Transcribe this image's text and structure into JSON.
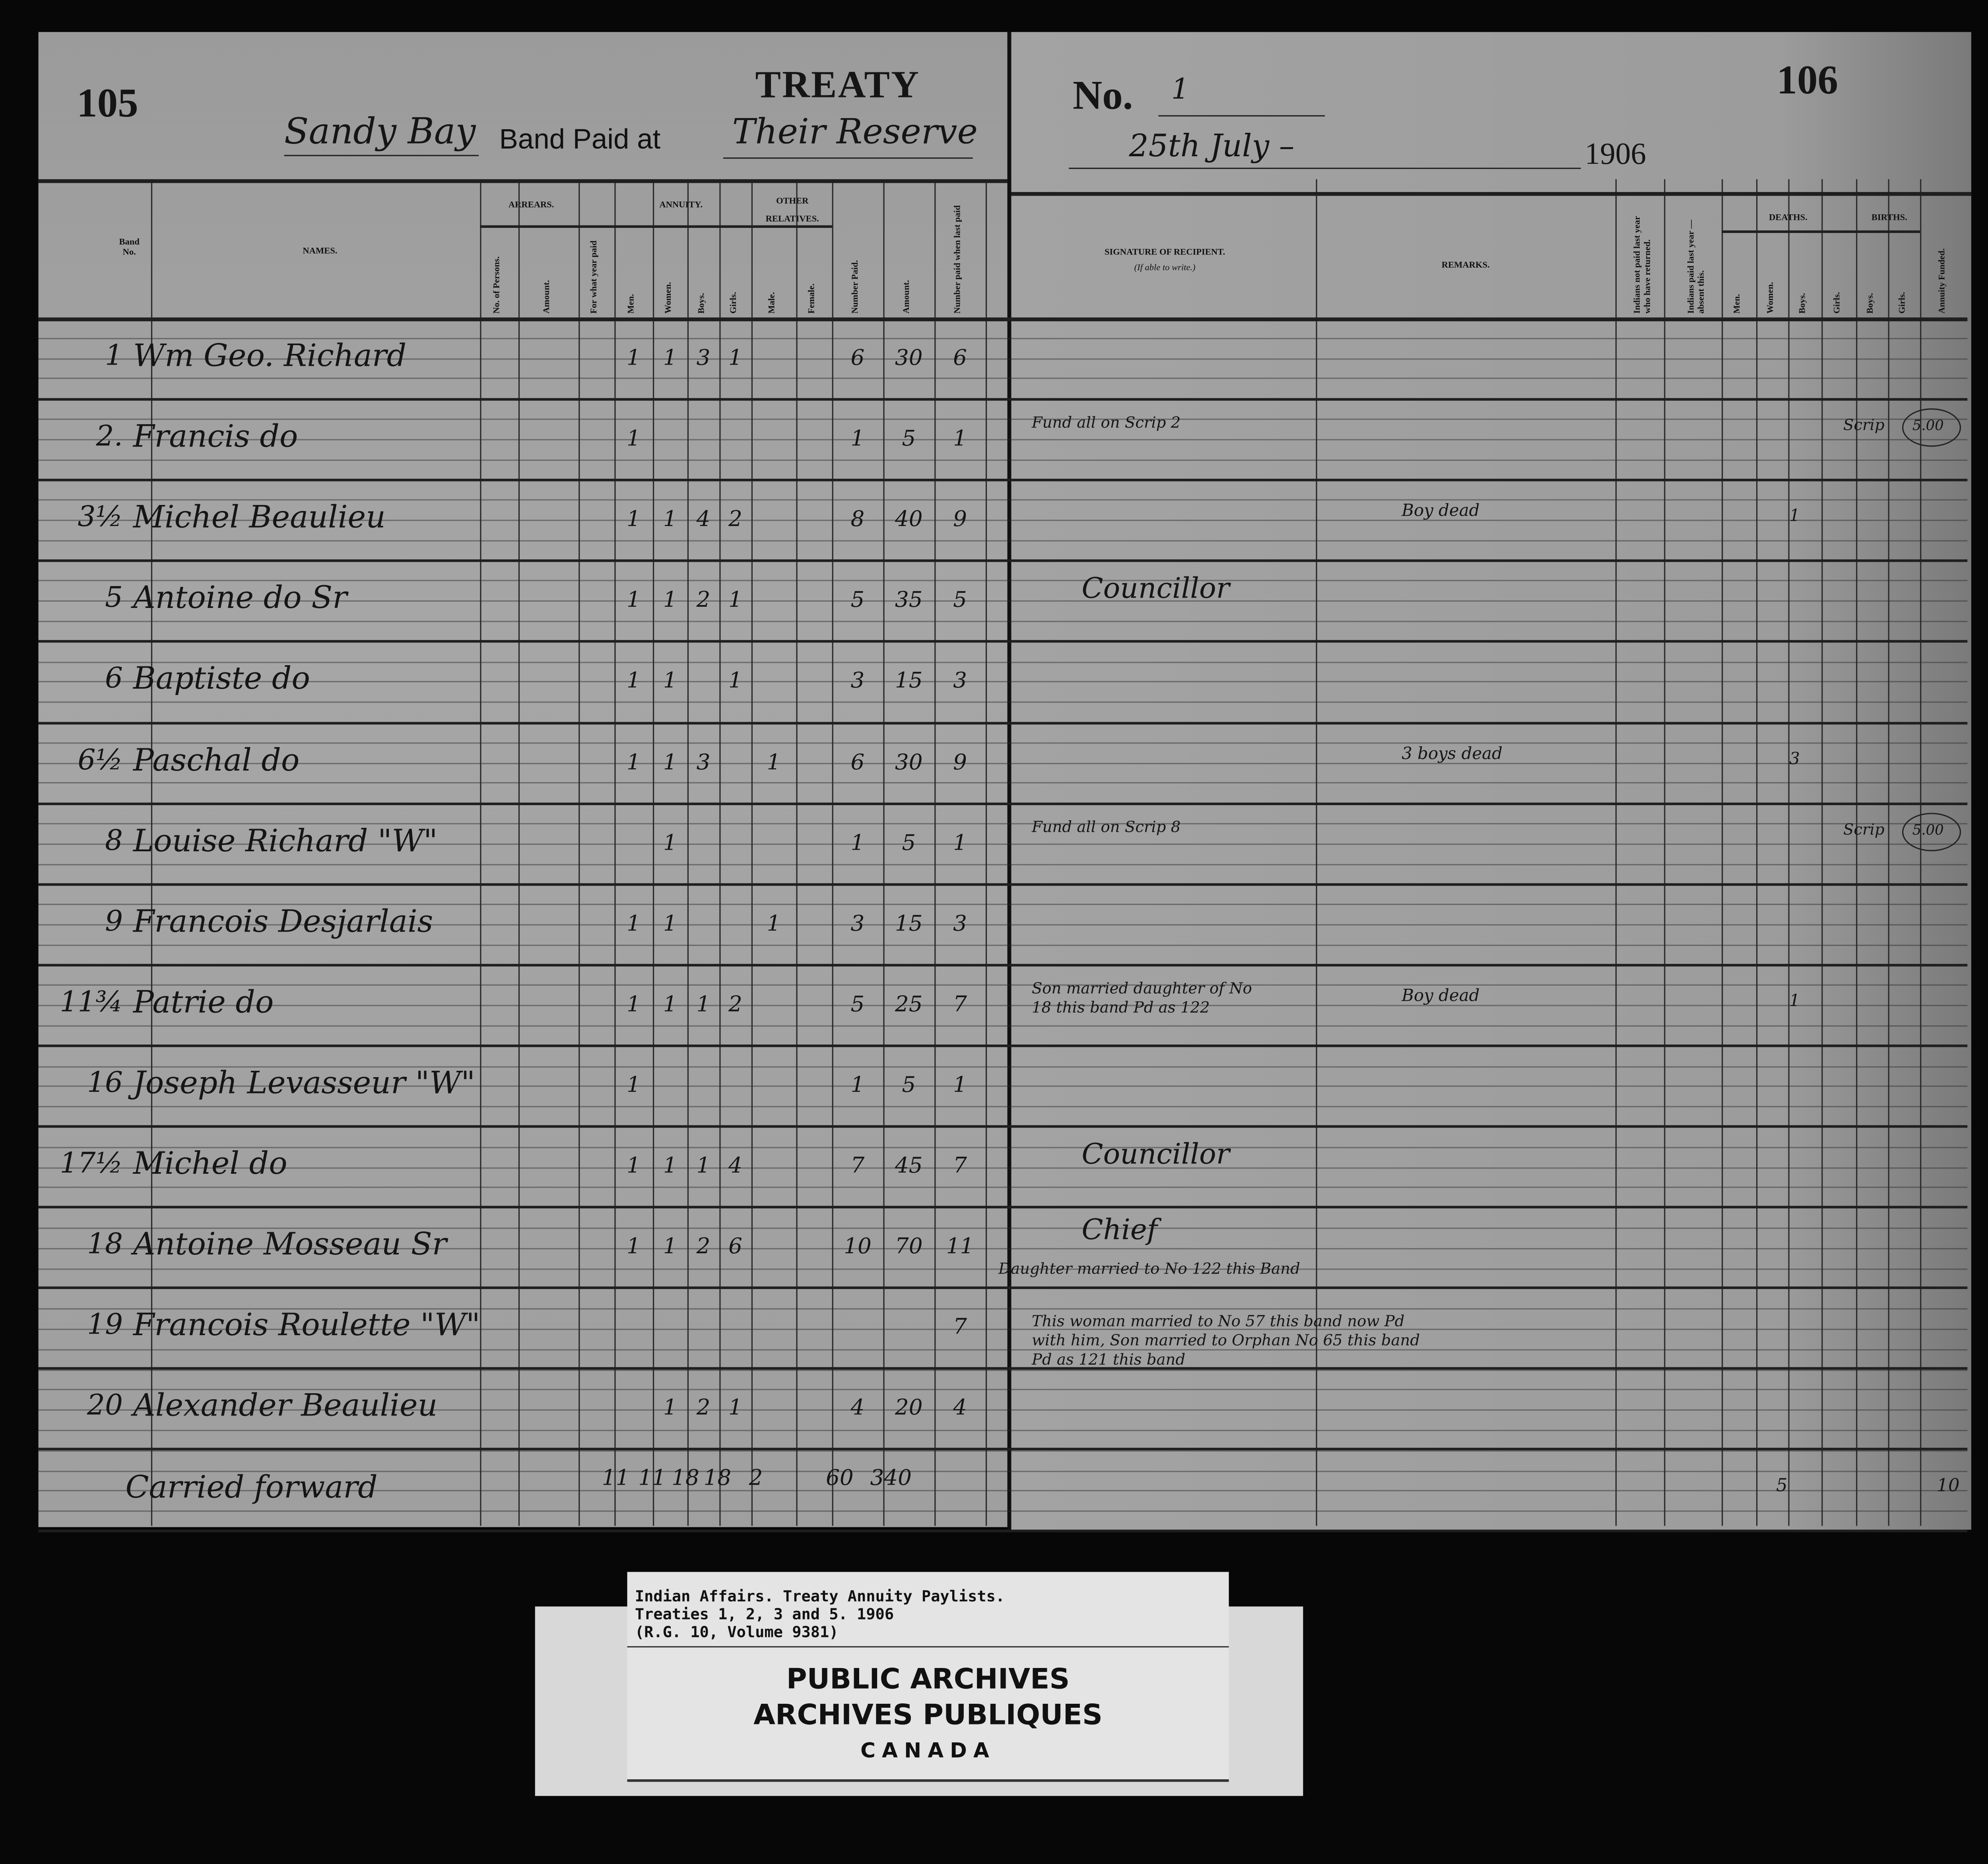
{
  "header": {
    "page_number_left": "105",
    "page_number_right": "106",
    "title": "TREATY",
    "no_label": "No.",
    "treaty_no": "1",
    "band_name": "Sandy Bay",
    "band_paid_at_label": "Band Paid at",
    "paid_at_place": "Their Reserve",
    "date": "25th July –",
    "year": "1906"
  },
  "columns": {
    "band_no": "Band No.",
    "names": "NAMES.",
    "arrears": "ARREARS.",
    "arrears_persons": "No. of Persons.",
    "arrears_amount": "Amount.",
    "arrears_year": "For what year paid",
    "annuity": "ANNUITY.",
    "men": "Men.",
    "women": "Women.",
    "boys": "Boys.",
    "girls": "Girls.",
    "other_relatives": "OTHER RELATIVES.",
    "male": "Male.",
    "female": "Female.",
    "number_paid": "Number Paid.",
    "amount": "Amount.",
    "number_last": "Number paid when last paid",
    "signature": "SIGNATURE OF RECIPIENT.",
    "signature_sub": "(If able to write.)",
    "remarks": "REMARKS.",
    "not_paid_returned": "Indians not paid last year who have returned.",
    "paid_absent": "Indians paid last year — absent this.",
    "deaths": "DEATHS.",
    "births": "BIRTHS.",
    "d_men": "Men.",
    "d_women": "Women.",
    "d_boys": "Boys.",
    "d_girls": "Girls.",
    "b_boys": "Boys.",
    "b_girls": "Girls.",
    "annuity_funded": "Annuity Funded."
  },
  "rows": [
    {
      "band_no": "1",
      "name": "Wm Geo. Richard",
      "men": "1",
      "women": "1",
      "boys": "3",
      "girls": "1",
      "number_paid": "6",
      "amount": "30",
      "number_last": "6"
    },
    {
      "band_no": "2.",
      "name": "Francis   do",
      "men": "1",
      "number_paid": "1",
      "amount": "5",
      "number_last": "1",
      "signature": "Fund all on Scrip 2",
      "funded_label": "Scrip",
      "funded_amount": "5.00"
    },
    {
      "band_no": "3½",
      "name": "Michel Beaulieu",
      "men": "1",
      "women": "1",
      "boys": "4",
      "girls": "2",
      "number_paid": "8",
      "amount": "40",
      "number_last": "9",
      "remarks": "Boy dead",
      "deaths_boys": "1"
    },
    {
      "band_no": "5",
      "name": "Antoine   do   Sr",
      "men": "1",
      "women": "1",
      "boys": "2",
      "girls": "1",
      "number_paid": "5",
      "amount": "35",
      "number_last": "5",
      "signature": "Councillor"
    },
    {
      "band_no": "6",
      "name": "Baptiste    do",
      "men": "1",
      "women": "1",
      "girls": "1",
      "number_paid": "3",
      "amount": "15",
      "number_last": "3"
    },
    {
      "band_no": "6½",
      "name": "Paschal    do",
      "men": "1",
      "women": "1",
      "boys": "3",
      "male": "1",
      "number_paid": "6",
      "amount": "30",
      "number_last": "9",
      "remarks": "3 boys dead",
      "deaths_boys": "3"
    },
    {
      "band_no": "8",
      "name": "Louise Richard \"W\"",
      "women": "1",
      "number_paid": "1",
      "amount": "5",
      "number_last": "1",
      "signature": "Fund all on Scrip 8",
      "funded_label": "Scrip",
      "funded_amount": "5.00"
    },
    {
      "band_no": "9",
      "name": "Francois Desjarlais",
      "men": "1",
      "women": "1",
      "male": "1",
      "number_paid": "3",
      "amount": "15",
      "number_last": "3"
    },
    {
      "band_no": "11¾",
      "name": "Patrie      do",
      "men": "1",
      "women": "1",
      "boys": "1",
      "girls": "2",
      "number_paid": "5",
      "amount": "25",
      "number_last": "7",
      "signature": "Son married daughter of No 18 this band Pd as 122",
      "remarks": "Boy dead",
      "deaths_boys": "1"
    },
    {
      "band_no": "16",
      "name": "Joseph Levasseur \"W\"",
      "men": "1",
      "number_paid": "1",
      "amount": "5",
      "number_last": "1"
    },
    {
      "band_no": "17½",
      "name": "Michel     do",
      "men": "1",
      "women": "1",
      "boys": "1",
      "girls": "4",
      "number_paid": "7",
      "amount": "45",
      "number_last": "7",
      "signature": "Councillor"
    },
    {
      "band_no": "18",
      "name": "Antoine Mosseau Sr",
      "men": "1",
      "women": "1",
      "boys": "2",
      "girls": "6",
      "number_paid": "10",
      "amount": "70",
      "number_last": "11",
      "signature": "Chief",
      "signature_extra": "Daughter married to No 122 this Band"
    },
    {
      "band_no": "19",
      "name": "Francois Roulette \"W\"",
      "number_last": "7",
      "signature": "This woman married to No 57 this band now Pd with him, Son married to Orphan No 65 this band Pd as 121 this band"
    },
    {
      "band_no": "20",
      "name": "Alexander Beaulieu",
      "women": "1",
      "boys": "2",
      "girls": "1",
      "number_paid": "4",
      "amount": "20",
      "number_last": "4"
    }
  ],
  "carried_forward": {
    "label": "Carried forward",
    "men": "11",
    "women": "11",
    "boys": "18",
    "girls": "18",
    "male": "2",
    "number_paid": "60",
    "amount": "340",
    "deaths_boys": "5",
    "annuity_funded": "10"
  },
  "archive_label": {
    "line1": "Indian Affairs.  Treaty Annuity Paylists.",
    "line2": "Treaties 1, 2, 3 and 5.  1906",
    "line3": "(R.G. 10, Volume 9381)",
    "stamp_line1": "PUBLIC   ARCHIVES",
    "stamp_line2": "ARCHIVES   PUBLIQUES",
    "stamp_line3": "CANADA"
  }
}
